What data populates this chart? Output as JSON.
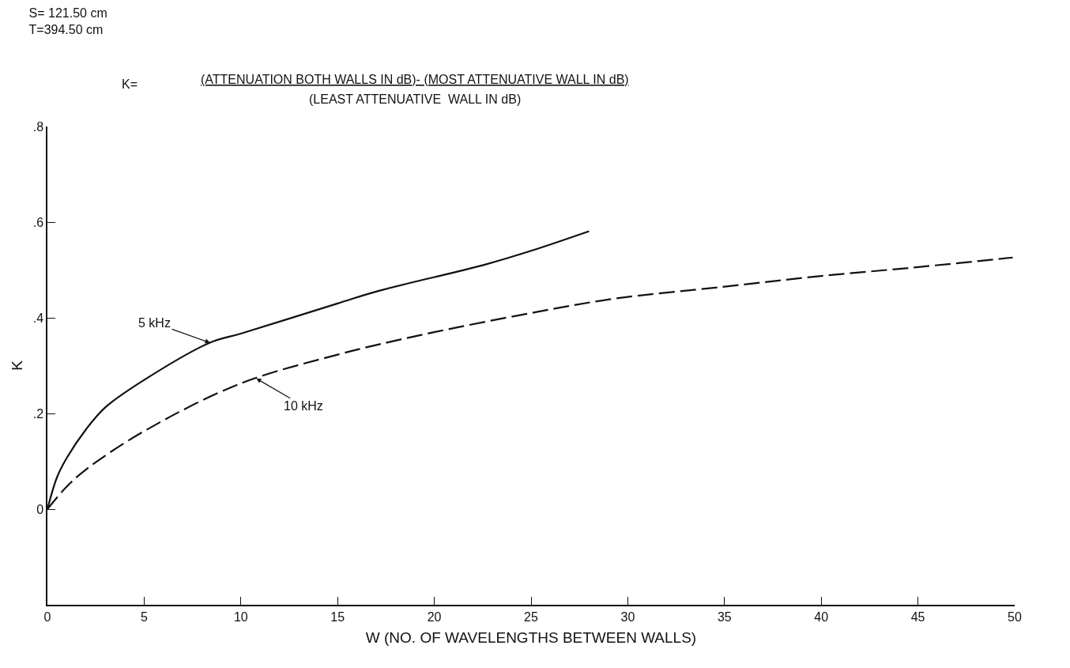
{
  "chart_data": {
    "type": "line",
    "title": "S= 121.50 cm",
    "subtitle": "T=394.50 cm",
    "xlabel": "W (NO. OF WAVELENGTHS BETWEEN WALLS)",
    "ylabel": "K",
    "annotations": [
      "K=",
      "(ATTENUATION BOTH WALLS IN dB)- (MOST ATTENUATIVE WALL IN dB)",
      "(LEAST ATTENUATIVE  WALL IN dB)",
      {
        "text": "5 kHz",
        "x": 8.4,
        "y": 0.348
      },
      {
        "text": "10 kHz",
        "x": 10.8,
        "y": 0.273
      }
    ],
    "series": [
      {
        "color": "#111111",
        "line_style": "solid",
        "x": [
          0,
          0.5,
          1,
          2,
          3,
          5,
          8.4,
          10,
          15,
          17.1,
          22.6,
          25,
          28
        ],
        "values": [
          0,
          0.067,
          0.107,
          0.167,
          0.213,
          0.27,
          0.348,
          0.367,
          0.43,
          0.456,
          0.511,
          0.54,
          0.581
        ]
      },
      {
        "color": "#111111",
        "line_style": "dashed",
        "x": [
          0,
          1,
          2,
          5,
          10,
          15,
          17.1,
          20,
          25,
          29.3,
          35,
          39.9,
          45,
          49.9
        ],
        "values": [
          0,
          0.047,
          0.083,
          0.163,
          0.263,
          0.323,
          0.344,
          0.37,
          0.41,
          0.44,
          0.465,
          0.487,
          0.506,
          0.526
        ]
      }
    ],
    "xlim": [
      0,
      50
    ],
    "xticks": [
      0,
      5,
      10,
      15,
      20,
      25,
      30,
      35,
      40,
      45,
      50
    ],
    "ylim": [
      -0.2,
      0.8
    ],
    "yticks": [
      0,
      {
        "value": 0.2,
        "label": ".2"
      },
      {
        "value": 0.4,
        "label": ".4"
      },
      {
        "value": 0.6,
        "label": ".6"
      },
      {
        "value": 0.8,
        "label": ".8"
      }
    ],
    "marker": "none"
  }
}
